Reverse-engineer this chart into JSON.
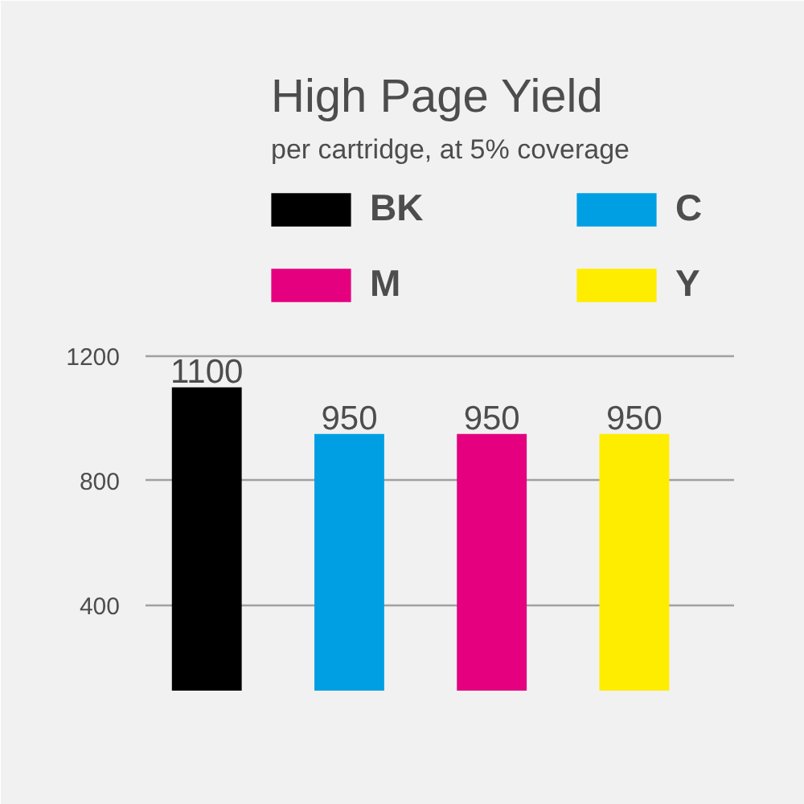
{
  "chart_data": {
    "type": "bar",
    "title": "High Page Yield",
    "subtitle": "per cartridge, at 5% coverage",
    "categories": [
      null,
      null,
      null,
      null
    ],
    "stacked": true,
    "series": [
      {
        "name": "BK",
        "color": "#000000",
        "values": [
          1100,
          null,
          null,
          null
        ]
      },
      {
        "name": "C",
        "color": "#009fe3",
        "values": [
          null,
          950,
          null,
          null
        ]
      },
      {
        "name": "M",
        "color": "#e4007f",
        "values": [
          null,
          null,
          950,
          null
        ]
      },
      {
        "name": "Y",
        "color": "#ffed00",
        "values": [
          null,
          null,
          null,
          950
        ]
      }
    ],
    "ylim": [
      125,
      1800
    ],
    "yticks": [
      400,
      800,
      1200
    ],
    "grid": "y",
    "legend": "top",
    "data_labels": true,
    "tick_labels": "y"
  }
}
